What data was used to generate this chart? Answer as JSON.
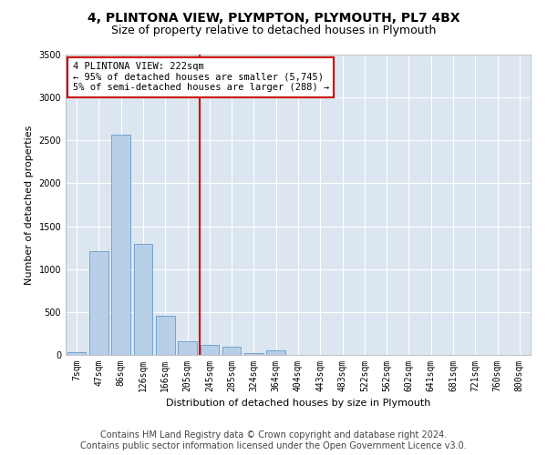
{
  "title": "4, PLINTONA VIEW, PLYMPTON, PLYMOUTH, PL7 4BX",
  "subtitle": "Size of property relative to detached houses in Plymouth",
  "xlabel": "Distribution of detached houses by size in Plymouth",
  "ylabel": "Number of detached properties",
  "footer_line1": "Contains HM Land Registry data © Crown copyright and database right 2024.",
  "footer_line2": "Contains public sector information licensed under the Open Government Licence v3.0.",
  "annotation_line1": "4 PLINTONA VIEW: 222sqm",
  "annotation_line2": "← 95% of detached houses are smaller (5,745)",
  "annotation_line3": "5% of semi-detached houses are larger (288) →",
  "bar_labels": [
    "7sqm",
    "47sqm",
    "86sqm",
    "126sqm",
    "166sqm",
    "205sqm",
    "245sqm",
    "285sqm",
    "324sqm",
    "364sqm",
    "404sqm",
    "443sqm",
    "483sqm",
    "522sqm",
    "562sqm",
    "602sqm",
    "641sqm",
    "681sqm",
    "721sqm",
    "760sqm",
    "800sqm"
  ],
  "bar_values": [
    30,
    1210,
    2570,
    1290,
    460,
    160,
    120,
    100,
    20,
    50,
    0,
    0,
    0,
    0,
    0,
    0,
    0,
    0,
    0,
    0,
    0
  ],
  "bar_color": "#b8cfe8",
  "bar_edge_color": "#6699cc",
  "plot_bg_color": "#dce6f0",
  "fig_bg_color": "#ffffff",
  "grid_color": "#ffffff",
  "red_line_x": 5.55,
  "ylim": [
    0,
    3500
  ],
  "yticks": [
    0,
    500,
    1000,
    1500,
    2000,
    2500,
    3000,
    3500
  ],
  "annotation_box_facecolor": "#ffffff",
  "annotation_box_edgecolor": "#cc0000",
  "red_line_color": "#cc0000",
  "title_fontsize": 10,
  "subtitle_fontsize": 9,
  "axis_label_fontsize": 8,
  "tick_fontsize": 7,
  "footer_fontsize": 7,
  "annotation_fontsize": 7.5
}
